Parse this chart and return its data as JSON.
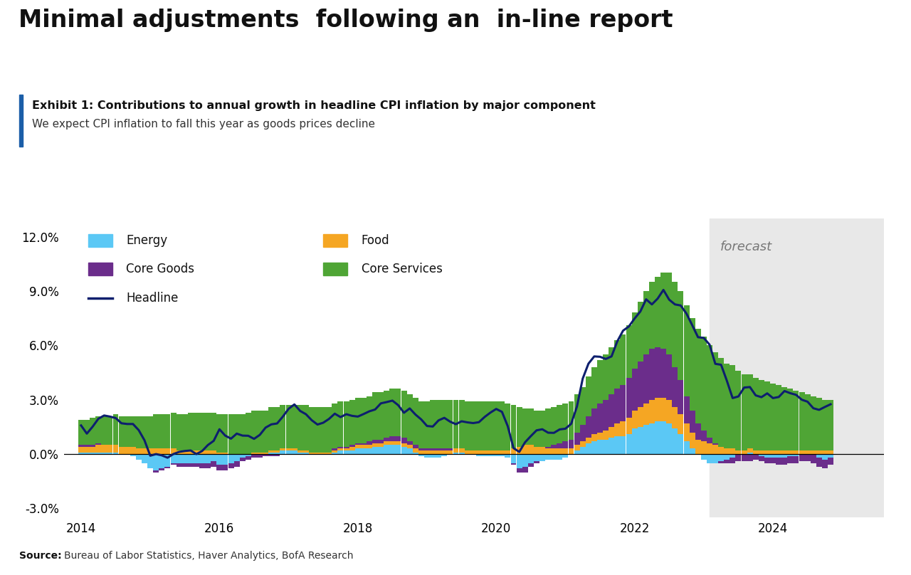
{
  "title": "Minimal adjustments  following an  in-line report",
  "exhibit_title": "Exhibit 1: Contributions to annual growth in headline CPI inflation by major component",
  "subtitle": "We expect CPI inflation to fall this year as goods prices decline",
  "source": "Bureau of Labor Statistics, Haver Analytics, BofA Research",
  "forecast_label": "forecast",
  "colors": {
    "energy": "#5BC8F5",
    "food": "#F5A623",
    "core_goods": "#6B2D8B",
    "core_services": "#4FA535",
    "headline": "#0D1F6E"
  },
  "forecast_start": 2023.083,
  "ylim": [
    -3.5,
    13.0
  ],
  "yticks": [
    -3.0,
    0.0,
    3.0,
    6.0,
    9.0,
    12.0
  ],
  "ytick_labels": [
    "-3.0%",
    "0.0%",
    "3.0%",
    "6.0%",
    "9.0%",
    "12.0%"
  ],
  "xlim": [
    2013.75,
    2025.6
  ],
  "xticks": [
    2014,
    2016,
    2018,
    2020,
    2022,
    2024
  ],
  "background_color": "#FFFFFF",
  "forecast_bg": "#E8E8E8",
  "accent_color": "#1B5EA8"
}
